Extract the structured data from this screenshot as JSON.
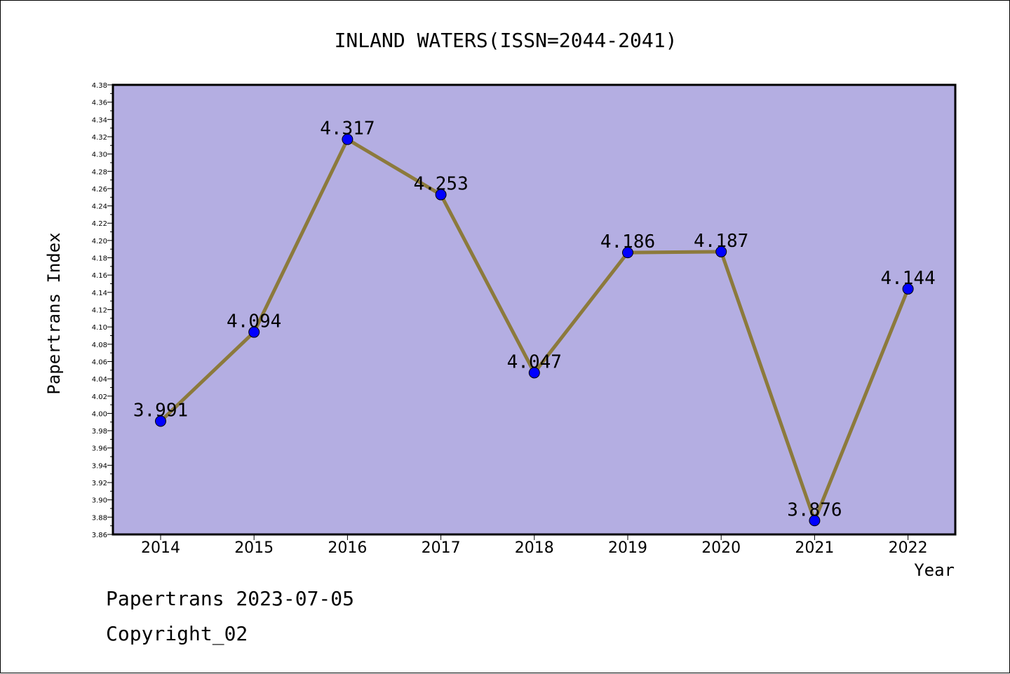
{
  "chart_data": {
    "type": "line",
    "title": "INLAND WATERS(ISSN=2044-2041)",
    "xlabel": "Year",
    "ylabel": "Papertrans Index",
    "categories": [
      "2014",
      "2015",
      "2016",
      "2017",
      "2018",
      "2019",
      "2020",
      "2021",
      "2022"
    ],
    "values": [
      3.991,
      4.094,
      4.317,
      4.253,
      4.047,
      4.186,
      4.187,
      3.876,
      4.144
    ],
    "data_labels": [
      "3.991",
      "4.094",
      "4.317",
      "4.253",
      "4.047",
      "4.186",
      "4.187",
      "3.876",
      "4.144"
    ],
    "ylim": [
      3.86,
      4.38
    ],
    "y_major_ticks": [
      "3.86",
      "3.88",
      "3.90",
      "3.92",
      "3.94",
      "3.96",
      "3.98",
      "4.00",
      "4.02",
      "4.04",
      "4.06",
      "4.08",
      "4.10",
      "4.12",
      "4.14",
      "4.16",
      "4.18",
      "4.20",
      "4.22",
      "4.24",
      "4.26",
      "4.28",
      "4.30",
      "4.32",
      "4.34",
      "4.36",
      "4.38"
    ],
    "grid": false,
    "colors": {
      "plot_background": "#b4aee2",
      "line": "#8c7a3c",
      "marker": "#0000ff"
    }
  },
  "footer": {
    "line1": "Papertrans 2023-07-05",
    "line2": "Copyright_02"
  }
}
